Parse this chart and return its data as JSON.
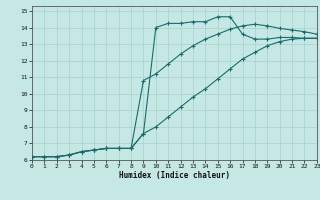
{
  "xlabel": "Humidex (Indice chaleur)",
  "xlim": [
    0,
    23
  ],
  "ylim": [
    6,
    15
  ],
  "xticks": [
    0,
    1,
    2,
    3,
    4,
    5,
    6,
    7,
    8,
    9,
    10,
    11,
    12,
    13,
    14,
    15,
    16,
    17,
    18,
    19,
    20,
    21,
    22,
    23
  ],
  "yticks": [
    6,
    7,
    8,
    9,
    10,
    11,
    12,
    13,
    14,
    15
  ],
  "bg_color": "#c5e8e5",
  "grid_color": "#a8d0cc",
  "line_color": "#1a6b6b",
  "line1_x": [
    0,
    1,
    2,
    3,
    4,
    5,
    6,
    7,
    8,
    9,
    10,
    11,
    12,
    13,
    14,
    15,
    16,
    17,
    18,
    19,
    20,
    21,
    22,
    23
  ],
  "line1_y": [
    6.2,
    6.2,
    6.2,
    6.3,
    6.5,
    6.6,
    6.7,
    6.7,
    6.7,
    7.6,
    14.0,
    14.25,
    14.25,
    14.35,
    14.35,
    14.65,
    14.65,
    13.6,
    13.3,
    13.3,
    13.4,
    13.4,
    13.35,
    13.35
  ],
  "line2_x": [
    0,
    1,
    2,
    3,
    4,
    5,
    6,
    7,
    8,
    9,
    10,
    11,
    12,
    13,
    14,
    15,
    16,
    17,
    18,
    19,
    20,
    21,
    22,
    23
  ],
  "line2_y": [
    6.2,
    6.2,
    6.2,
    6.3,
    6.5,
    6.6,
    6.7,
    6.7,
    6.7,
    10.8,
    11.2,
    11.8,
    12.4,
    12.9,
    13.3,
    13.6,
    13.9,
    14.1,
    14.2,
    14.1,
    13.95,
    13.85,
    13.75,
    13.6
  ],
  "line3_x": [
    0,
    1,
    2,
    3,
    4,
    5,
    6,
    7,
    8,
    9,
    10,
    11,
    12,
    13,
    14,
    15,
    16,
    17,
    18,
    19,
    20,
    21,
    22,
    23
  ],
  "line3_y": [
    6.2,
    6.2,
    6.2,
    6.3,
    6.5,
    6.6,
    6.7,
    6.7,
    6.7,
    7.6,
    8.0,
    8.6,
    9.2,
    9.8,
    10.3,
    10.9,
    11.5,
    12.1,
    12.5,
    12.9,
    13.15,
    13.3,
    13.35,
    13.35
  ]
}
